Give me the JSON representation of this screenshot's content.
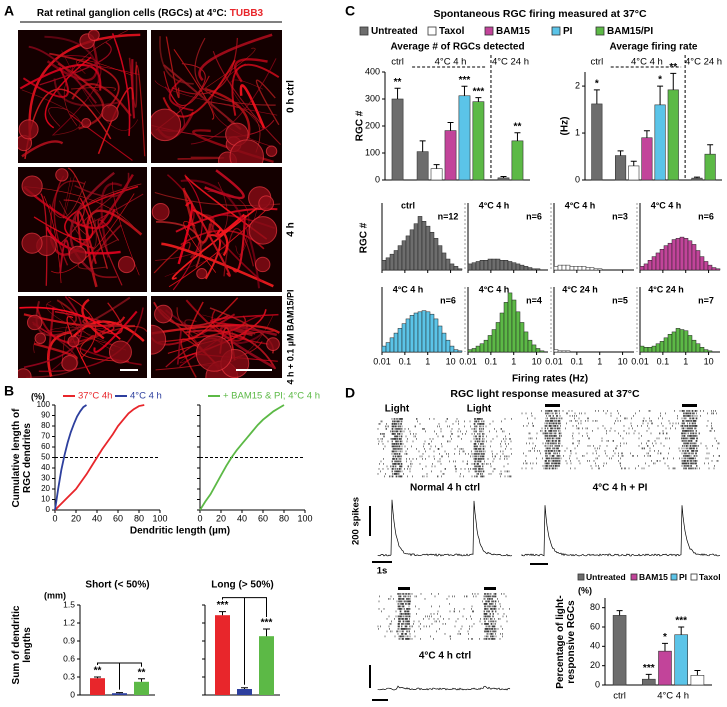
{
  "panel_a": {
    "label": "A",
    "title": "Rat retinal ganglion cells (RGCs) at 4°C: ",
    "stain": "TUBB3",
    "conditions": [
      "0 h ctrl",
      "4 h",
      "4 h + 0.1 µM BAM15/PI"
    ]
  },
  "panel_b": {
    "label": "B",
    "cumulative": {
      "type": "line",
      "y_unit": "(%)",
      "y_label": "Cumulative length of RGC dendrites",
      "x_label": "Dendritic length (µm)",
      "xlim": [
        0,
        100
      ],
      "xticks": [
        0,
        20,
        40,
        60,
        80,
        100
      ],
      "ylim": [
        0,
        100
      ],
      "yticks": [
        0,
        10,
        20,
        30,
        40,
        50,
        60,
        70,
        80,
        90,
        100
      ],
      "reference_line": 50,
      "plots": [
        {
          "series": [
            {
              "name": "37°C 4h",
              "color": "#e8262b",
              "x": [
                0,
                5,
                10,
                15,
                20,
                25,
                30,
                35,
                40,
                45,
                50,
                55,
                60,
                65,
                70,
                75,
                80,
                85
              ],
              "values": [
                0,
                5,
                10,
                15,
                20,
                27,
                34,
                42,
                50,
                58,
                65,
                72,
                80,
                86,
                92,
                96,
                99,
                100
              ]
            },
            {
              "name": "4°C 4 h",
              "color": "#2d3f9e",
              "x": [
                0,
                3,
                6,
                9,
                12,
                15,
                18,
                21,
                24,
                27,
                30
              ],
              "values": [
                0,
                20,
                38,
                52,
                64,
                74,
                82,
                89,
                94,
                98,
                100
              ]
            }
          ]
        },
        {
          "series": [
            {
              "name": "+ BAM15 & PI; 4°C 4 h",
              "color": "#5cb946",
              "x": [
                0,
                5,
                10,
                15,
                20,
                25,
                30,
                35,
                40,
                45,
                50,
                55,
                60,
                65,
                70,
                75,
                80
              ],
              "values": [
                0,
                8,
                15,
                24,
                33,
                42,
                50,
                57,
                63,
                69,
                75,
                81,
                86,
                90,
                94,
                97,
                100
              ]
            }
          ]
        }
      ]
    },
    "sums": {
      "type": "bar",
      "y_label": "Sum of dendritic lengths",
      "y_unit": "(mm)",
      "ylim": [
        0,
        1.5
      ],
      "yticks": [
        0,
        0.3,
        0.6,
        0.9,
        1.2,
        1.5
      ],
      "colors": [
        "#e8262b",
        "#2d3f9e",
        "#5cb946"
      ],
      "groups": [
        {
          "title": "Short (< 50%)",
          "values": [
            0.28,
            0.03,
            0.22
          ],
          "errors": [
            0.02,
            0.01,
            0.05
          ],
          "stars": [
            "**",
            null,
            "**"
          ]
        },
        {
          "title": "Long (> 50%)",
          "values": [
            1.33,
            0.1,
            0.98
          ],
          "errors": [
            0.06,
            0.02,
            0.12
          ],
          "stars": [
            "***",
            null,
            "***"
          ]
        }
      ]
    }
  },
  "panel_c": {
    "label": "C",
    "title": "Spontaneous RGC firing measured at 37°C",
    "series": [
      {
        "name": "Untreated",
        "color": "#6d6d6d"
      },
      {
        "name": "Taxol",
        "color": "#ffffff"
      },
      {
        "name": "BAM15",
        "color": "#c2449a"
      },
      {
        "name": "PI",
        "color": "#5bc4e8"
      },
      {
        "name": "BAM15/PI",
        "color": "#5cb946"
      }
    ],
    "categories": [
      "ctrl",
      "4°C 4 h",
      "4°C 24 h"
    ],
    "counts": {
      "type": "bar",
      "title": "Average # of RGCs detected",
      "y_label": "RGC #",
      "ylim": [
        0,
        400
      ],
      "yticks": [
        0,
        100,
        200,
        300,
        400
      ],
      "values": [
        [
          300,
          105,
          8
        ],
        [
          null,
          42,
          null
        ],
        [
          null,
          183,
          null
        ],
        [
          null,
          312,
          null
        ],
        [
          null,
          290,
          145
        ]
      ],
      "errors": [
        [
          40,
          40,
          5
        ],
        [
          null,
          15,
          null
        ],
        [
          null,
          30,
          null
        ],
        [
          null,
          35,
          null
        ],
        [
          null,
          15,
          30
        ]
      ],
      "stars": [
        [
          "**",
          null,
          null
        ],
        [
          null,
          null,
          null
        ],
        [
          null,
          null,
          null
        ],
        [
          null,
          "***",
          null
        ],
        [
          null,
          "***",
          "**"
        ]
      ]
    },
    "rates": {
      "type": "bar",
      "title": "Average firing rate",
      "y_label": "(Hz)",
      "ylim": [
        0,
        2.3
      ],
      "yticks": [
        0,
        1,
        2
      ],
      "values": [
        [
          1.62,
          0.52,
          0.04
        ],
        [
          null,
          0.3,
          null
        ],
        [
          null,
          0.9,
          null
        ],
        [
          null,
          1.6,
          null
        ],
        [
          null,
          1.92,
          0.55
        ]
      ],
      "errors": [
        [
          0.3,
          0.1,
          0.02
        ],
        [
          null,
          0.1,
          null
        ],
        [
          null,
          0.15,
          null
        ],
        [
          null,
          0.4,
          null
        ],
        [
          null,
          0.35,
          0.2
        ]
      ],
      "stars": [
        [
          "*",
          null,
          null
        ],
        [
          null,
          null,
          null
        ],
        [
          null,
          null,
          null
        ],
        [
          null,
          "*",
          null
        ],
        [
          null,
          "**",
          null
        ]
      ]
    },
    "histograms": {
      "type": "histogram",
      "y_label": "RGC #",
      "x_label": "Firing rates (Hz)",
      "log_x": true,
      "xlim": [
        0.01,
        31.6
      ],
      "xticks": [
        0.01,
        0.1,
        1,
        10
      ],
      "ylim": [
        0,
        55
      ],
      "bins": [
        0.01,
        0.015,
        0.0224,
        0.0335,
        0.0501,
        0.075,
        0.112,
        0.168,
        0.251,
        0.376,
        0.562,
        0.841,
        1.26,
        1.88,
        2.82,
        4.22,
        6.31,
        9.44,
        14.1,
        21.1,
        31.6
      ],
      "panels": [
        {
          "title": "ctrl",
          "n": "n=12",
          "color": "#6d6d6d",
          "values": [
            8,
            10,
            13,
            16,
            20,
            24,
            28,
            33,
            38,
            44,
            40,
            36,
            31,
            26,
            20,
            14,
            9,
            5,
            3,
            1
          ]
        },
        {
          "title": "4°C 4 h",
          "n": "n=6",
          "color": "#6d6d6d",
          "values": [
            5,
            6,
            7,
            8,
            8,
            9,
            9,
            9,
            8,
            8,
            7,
            6,
            5,
            4,
            3,
            2,
            1,
            1,
            0,
            0
          ]
        },
        {
          "title": "4°C 4 h",
          "n": "n=3",
          "color": "#ffffff",
          "values": [
            3,
            4,
            4,
            4,
            3,
            3,
            3,
            3,
            2,
            2,
            1,
            1,
            0,
            0,
            0,
            0,
            0,
            0,
            0,
            0
          ]
        },
        {
          "title": "4°C 4 h",
          "n": "n=6",
          "color": "#c2449a",
          "values": [
            3,
            5,
            8,
            11,
            14,
            17,
            20,
            22,
            25,
            26,
            27,
            26,
            24,
            21,
            16,
            11,
            7,
            4,
            2,
            1
          ]
        },
        {
          "title": "4°C 4 h",
          "n": "n=6",
          "color": "#5bc4e8",
          "values": [
            5,
            8,
            12,
            16,
            20,
            24,
            28,
            31,
            33,
            34,
            35,
            34,
            32,
            28,
            22,
            16,
            10,
            5,
            2,
            1
          ]
        },
        {
          "title": "4°C 4 h",
          "n": "n=4",
          "color": "#5cb946",
          "values": [
            2,
            3,
            5,
            7,
            10,
            14,
            19,
            25,
            33,
            42,
            50,
            44,
            34,
            25,
            17,
            10,
            6,
            3,
            1,
            0
          ]
        },
        {
          "title": "4°C 24 h",
          "n": "n=5",
          "color": "#ffffff",
          "values": [
            2,
            1,
            1,
            1,
            0,
            0,
            0,
            0,
            0,
            0,
            0,
            0,
            0,
            0,
            0,
            0,
            0,
            0,
            0,
            0
          ]
        },
        {
          "title": "4°C 24 h",
          "n": "n=7",
          "color": "#5cb946",
          "values": [
            5,
            4,
            4,
            5,
            7,
            9,
            12,
            15,
            17,
            20,
            19,
            18,
            14,
            10,
            7,
            4,
            2,
            1,
            0,
            0
          ]
        }
      ]
    }
  },
  "panel_d": {
    "label": "D",
    "title": "RGC light response measured at 37°C",
    "stimulus": "Light",
    "scale_y": "200 spikes",
    "scale_x": "1s",
    "recordings": [
      "Normal 4 h ctrl",
      "4°C 4 h + PI",
      "4°C 4 h ctrl"
    ],
    "responsive": {
      "type": "bar",
      "y_label": "Percentage of light-responsive RGCs",
      "y_unit": "(%)",
      "ylim": [
        0,
        90
      ],
      "yticks": [
        0,
        20,
        40,
        60,
        80
      ],
      "categories": [
        "ctrl",
        "4°C 4 h"
      ],
      "series": [
        {
          "name": "Untreated",
          "color": "#6d6d6d",
          "values": [
            72,
            6
          ],
          "errors": [
            5,
            5
          ],
          "stars": [
            null,
            "***"
          ]
        },
        {
          "name": "BAM15",
          "color": "#c2449a",
          "values": [
            null,
            35
          ],
          "errors": [
            null,
            8
          ],
          "stars": [
            null,
            "*"
          ]
        },
        {
          "name": "PI",
          "color": "#5bc4e8",
          "values": [
            null,
            52
          ],
          "errors": [
            null,
            8
          ],
          "stars": [
            null,
            "***"
          ]
        },
        {
          "name": "Taxol",
          "color": "#ffffff",
          "values": [
            null,
            10
          ],
          "errors": [
            null,
            5
          ],
          "stars": [
            null,
            null
          ]
        }
      ]
    }
  }
}
